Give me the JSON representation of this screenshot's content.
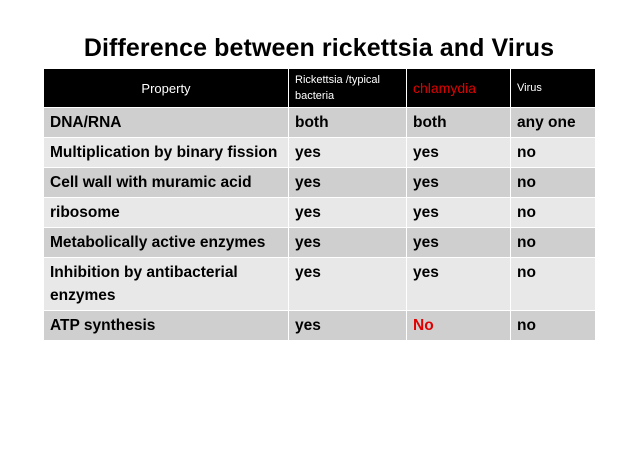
{
  "title": "Difference between rickettsia and Virus",
  "colors": {
    "header_bg": "#000000",
    "row_dark": "#cfcfcf",
    "row_light": "#e8e8e8",
    "highlight": "#e00000"
  },
  "table": {
    "headers": [
      "Property",
      "Rickettsia /typical bacteria",
      "chlamydia",
      "Virus"
    ],
    "rows": [
      [
        "DNA/RNA",
        "both",
        "both",
        "any one"
      ],
      [
        "Multiplication by binary fission",
        "yes",
        "yes",
        "no"
      ],
      [
        "Cell wall with muramic acid",
        "yes",
        "yes",
        "no"
      ],
      [
        "ribosome",
        "yes",
        "yes",
        "no"
      ],
      [
        "Metabolically active enzymes",
        "yes",
        "yes",
        "no"
      ],
      [
        "Inhibition by antibacterial enzymes",
        "yes",
        "yes",
        "no"
      ],
      [
        "ATP synthesis",
        "yes",
        "No",
        "no"
      ]
    ]
  }
}
